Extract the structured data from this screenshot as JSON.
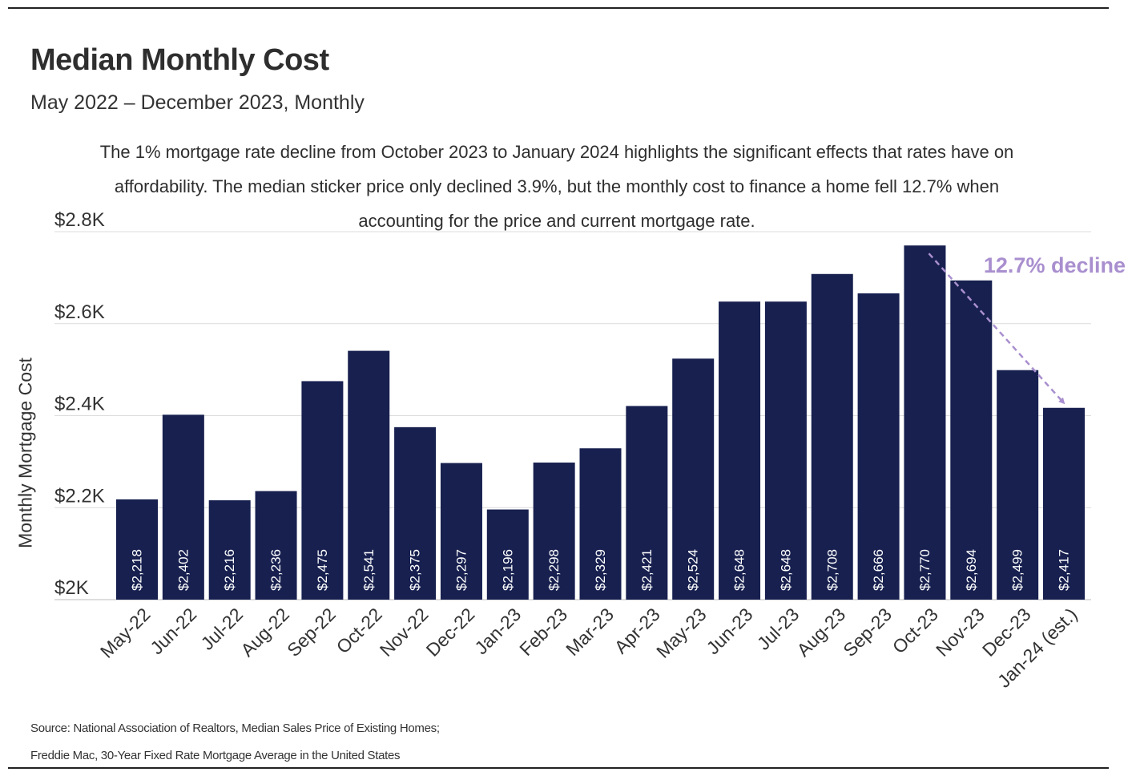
{
  "title": "Median Monthly Cost",
  "subtitle": "May 2022 – December 2023, Monthly",
  "description": "The 1% mortgage rate decline from October 2023 to January 2024 highlights the significant effects that rates have on affordability. The median sticker price only declined 3.9%, but the monthly cost to finance a home fell 12.7% when accounting for the price and current mortgage rate.",
  "source_lines": [
    "Source: National Association of Realtors, Median Sales Price of Existing Homes;",
    "Freddie Mac, 30-Year Fixed Rate Mortgage Average in the United States"
  ],
  "chart_data": {
    "type": "bar",
    "title": "Median Monthly Cost",
    "subtitle": "May 2022 – December 2023, Monthly",
    "xlabel": "",
    "ylabel": "Monthly Mortgage Cost",
    "ylim": [
      2000,
      2800
    ],
    "yticks": [
      2000,
      2200,
      2400,
      2600,
      2800
    ],
    "ytick_labels": [
      "$2K",
      "$2.2K",
      "$2.4K",
      "$2.6K",
      "$2.8K"
    ],
    "grid": true,
    "bar_color": "#17204f",
    "categories": [
      "May-22",
      "Jun-22",
      "Jul-22",
      "Aug-22",
      "Sep-22",
      "Oct-22",
      "Nov-22",
      "Dec-22",
      "Jan-23",
      "Feb-23",
      "Mar-23",
      "Apr-23",
      "May-23",
      "Jun-23",
      "Jul-23",
      "Aug-23",
      "Sep-23",
      "Oct-23",
      "Nov-23",
      "Dec-23",
      "Jan-24 (est.)"
    ],
    "values": [
      2218,
      2402,
      2216,
      2236,
      2475,
      2541,
      2375,
      2297,
      2196,
      2298,
      2329,
      2421,
      2524,
      2648,
      2648,
      2708,
      2666,
      2770,
      2694,
      2499,
      2417
    ],
    "data_labels": [
      "$2,218",
      "$2,402",
      "$2,216",
      "$2,236",
      "$2,475",
      "$2,541",
      "$2,375",
      "$2,297",
      "$2,196",
      "$2,298",
      "$2,329",
      "$2,421",
      "$2,524",
      "$2,648",
      "$2,648",
      "$2,708",
      "$2,666",
      "$2,770",
      "$2,694",
      "$2,499",
      "$2,417"
    ],
    "annotation": {
      "text": "12.7% decline",
      "from": "Oct-23",
      "to": "Jan-24 (est.)",
      "color": "#a98fcf"
    }
  }
}
